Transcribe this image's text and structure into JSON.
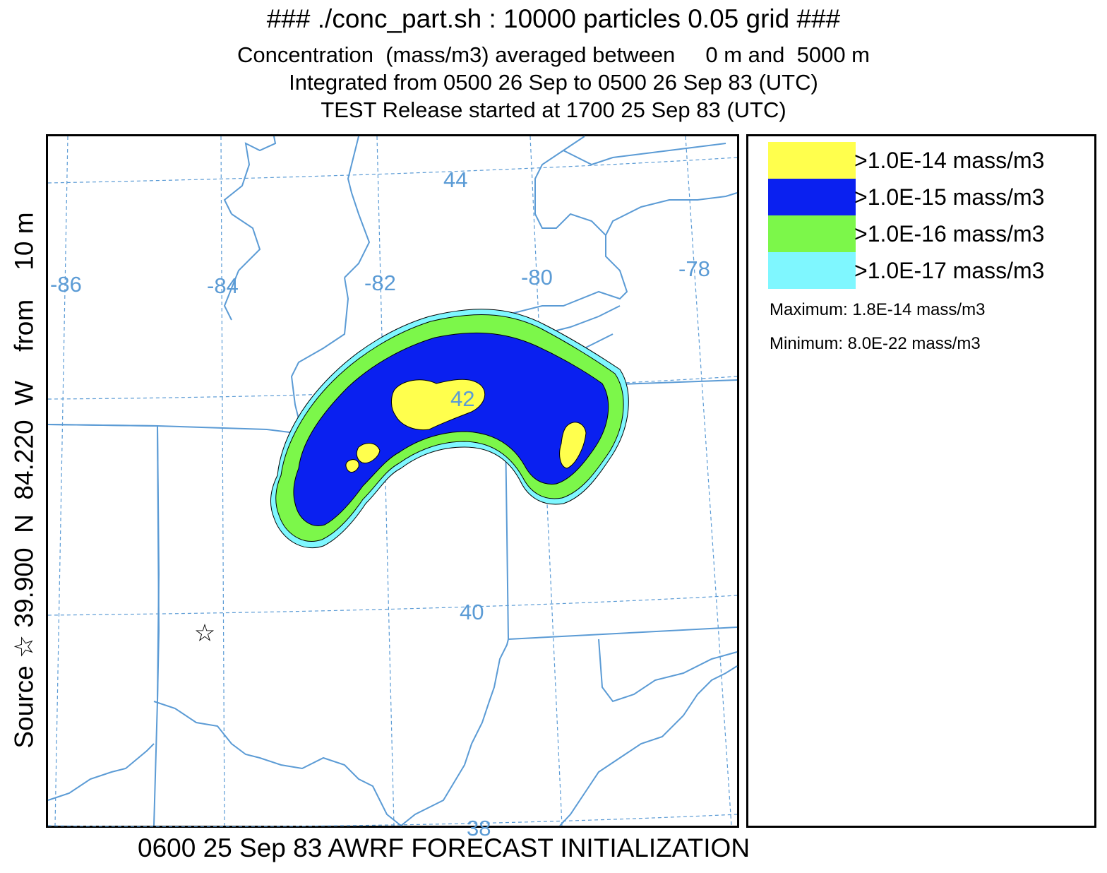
{
  "header": {
    "line1": "### ./conc_part.sh : 10000 particles 0.05 grid ###",
    "line2": "Concentration  (mass/m3) averaged between     0 m and  5000 m",
    "line3": "Integrated from 0500 26 Sep to 0500 26 Sep 83 (UTC)",
    "line4": "TEST Release started at 1700 25 Sep 83 (UTC)"
  },
  "side_label": "Source ☆ 39.900  N  84.220  W    from    10 m",
  "footer": "0600 25 Sep 83 AWRF FORECAST INITIALIZATION",
  "source_marker": "☆",
  "map": {
    "longitude_labels": [
      "-86",
      "-84",
      "-82",
      "-80",
      "-78"
    ],
    "latitude_labels": [
      "44",
      "42",
      "40",
      "38"
    ],
    "grid_color": "#5b9bd5",
    "boundary_color": "#5b9bd5"
  },
  "legend": {
    "items": [
      {
        "label": ">1.0E-14 mass/m3",
        "color": "#ffff4d"
      },
      {
        "label": ">1.0E-15 mass/m3",
        "color": "#0a20f0"
      },
      {
        "label": ">1.0E-16 mass/m3",
        "color": "#7cf74a"
      },
      {
        "label": ">1.0E-17 mass/m3",
        "color": "#7ff7ff"
      }
    ],
    "maximum": "Maximum: 1.8E-14 mass/m3",
    "minimum": "Minimum: 8.0E-22 mass/m3"
  }
}
